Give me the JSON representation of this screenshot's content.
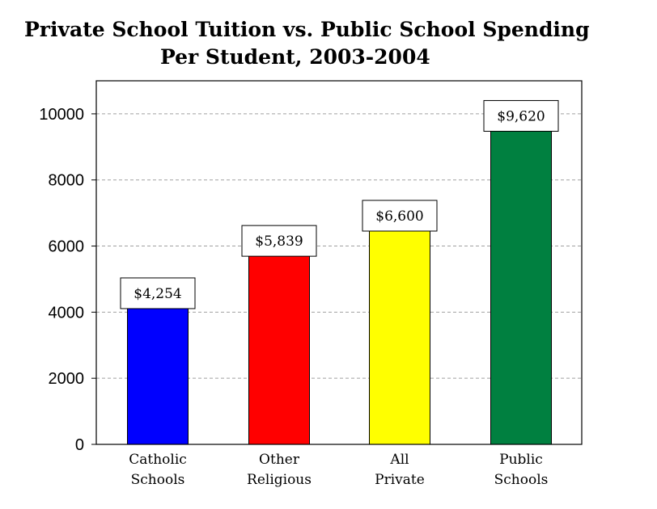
{
  "chart_data": {
    "type": "bar",
    "title_line1": "Private School Tuition vs. Public School Spending",
    "title_line2": "Per Student, 2003-2004",
    "categories": [
      [
        "Catholic",
        "Schools"
      ],
      [
        "Other",
        "Religious"
      ],
      [
        "All",
        "Private"
      ],
      [
        "Public",
        "Schools"
      ]
    ],
    "values": [
      4254,
      5839,
      6600,
      9620
    ],
    "data_labels": [
      "$4,254",
      "$5,839",
      "$6,600",
      "$9,620"
    ],
    "colors": [
      "#0000ff",
      "#ff0000",
      "#ffff00",
      "#008040"
    ],
    "ylim": [
      0,
      11000
    ],
    "yticks": [
      0,
      2000,
      4000,
      6000,
      8000,
      10000
    ],
    "ytick_labels": [
      "0",
      "2000",
      "4000",
      "6000",
      "8000",
      "10000"
    ],
    "grid": true,
    "legend": "none"
  }
}
